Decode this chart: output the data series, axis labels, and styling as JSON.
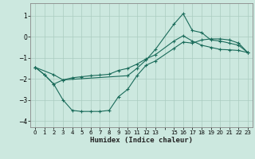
{
  "xlabel": "Humidex (Indice chaleur)",
  "bg_color": "#cce8df",
  "grid_color": "#aaccc0",
  "line_color": "#1a6b5a",
  "xlim": [
    -0.5,
    23.5
  ],
  "ylim": [
    -4.3,
    1.6
  ],
  "yticks": [
    -4,
    -3,
    -2,
    -1,
    0,
    1
  ],
  "xtick_labels": [
    "0",
    "1",
    "2",
    "3",
    "4",
    "5",
    "6",
    "7",
    "8",
    "9",
    "10",
    "11",
    "12",
    "13",
    "",
    "15",
    "16",
    "17",
    "18",
    "19",
    "20",
    "21",
    "22",
    "23"
  ],
  "xtick_positions": [
    0,
    1,
    2,
    3,
    4,
    5,
    6,
    7,
    8,
    9,
    10,
    11,
    12,
    13,
    14,
    15,
    16,
    17,
    18,
    19,
    20,
    21,
    22,
    23
  ],
  "line1_x": [
    0,
    1,
    2,
    3,
    4,
    5,
    6,
    7,
    8,
    9,
    10,
    11,
    12,
    13,
    15,
    16,
    17,
    18,
    19,
    20,
    21,
    22,
    23
  ],
  "line1_y": [
    -1.45,
    -1.8,
    -2.25,
    -3.0,
    -3.5,
    -3.55,
    -3.55,
    -3.55,
    -3.5,
    -2.85,
    -2.5,
    -1.85,
    -1.35,
    -1.15,
    -0.55,
    -0.25,
    -0.3,
    -0.15,
    -0.1,
    -0.1,
    -0.15,
    -0.3,
    -0.75
  ],
  "line2_x": [
    0,
    1,
    2,
    3,
    4,
    5,
    6,
    7,
    8,
    9,
    10,
    11,
    12,
    13,
    15,
    16,
    17,
    18,
    19,
    20,
    21,
    22,
    23
  ],
  "line2_y": [
    -1.45,
    -1.8,
    -2.25,
    -2.05,
    -1.95,
    -1.9,
    -1.85,
    -1.82,
    -1.78,
    -1.6,
    -1.5,
    -1.3,
    -1.05,
    -0.85,
    -0.2,
    0.05,
    -0.2,
    -0.4,
    -0.5,
    -0.6,
    -0.62,
    -0.65,
    -0.75
  ],
  "line3_x": [
    0,
    2,
    3,
    10,
    11,
    12,
    13,
    15,
    16,
    17,
    18,
    19,
    20,
    21,
    22,
    23
  ],
  "line3_y": [
    -1.45,
    -1.8,
    -2.05,
    -1.85,
    -1.5,
    -1.1,
    -0.6,
    0.6,
    1.1,
    0.3,
    0.2,
    -0.15,
    -0.2,
    -0.3,
    -0.4,
    -0.75
  ]
}
